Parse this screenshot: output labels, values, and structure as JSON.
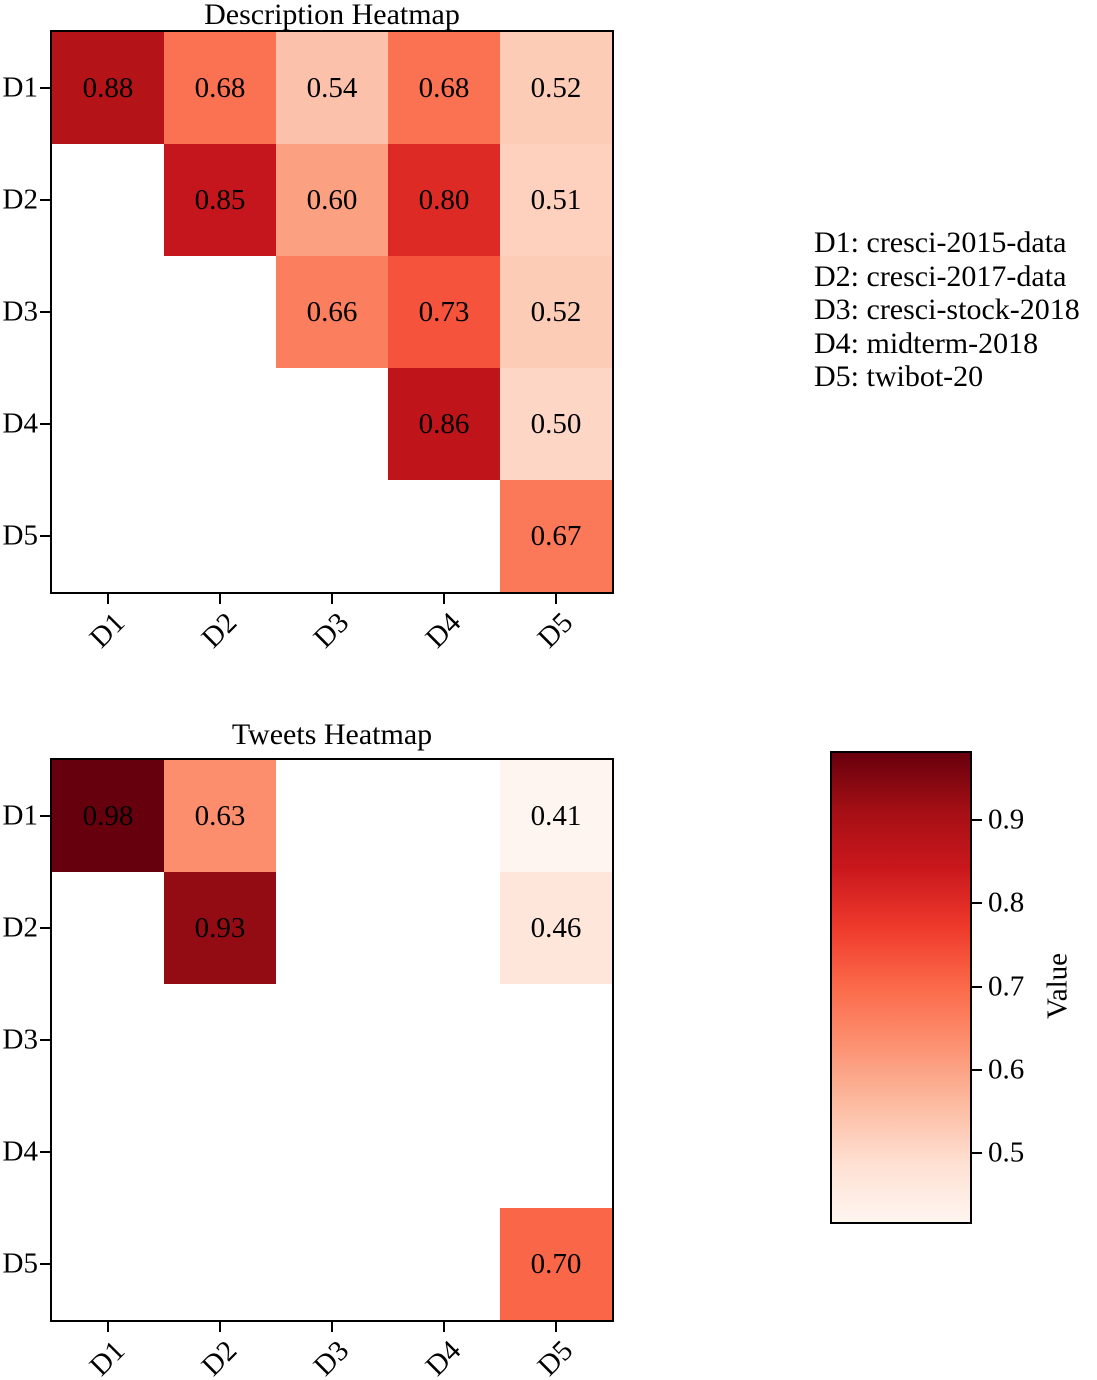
{
  "colormap": {
    "name": "Reds",
    "stops": [
      "#fff5f0",
      "#fee0d2",
      "#fcbba1",
      "#fc9272",
      "#fb6a4a",
      "#ef3b2c",
      "#cb181d",
      "#a50f15",
      "#67000d"
    ],
    "vmin": 0.41,
    "vmax": 0.98
  },
  "legend": {
    "items": [
      "D1: cresci-2015-data",
      "D2: cresci-2017-data",
      "D3: cresci-stock-2018",
      "D4: midterm-2018",
      "D5: twibot-20"
    ]
  },
  "colorbar": {
    "label": "Value",
    "ticks": [
      "0.9",
      "0.8",
      "0.7",
      "0.6",
      "0.5"
    ]
  },
  "chart_data": [
    {
      "type": "heatmap",
      "title": "Description Heatmap",
      "x_labels": [
        "D1",
        "D2",
        "D3",
        "D4",
        "D5"
      ],
      "y_labels": [
        "D1",
        "D2",
        "D3",
        "D4",
        "D5"
      ],
      "values": [
        [
          0.88,
          0.68,
          0.54,
          0.68,
          0.52
        ],
        [
          null,
          0.85,
          0.6,
          0.8,
          0.51
        ],
        [
          null,
          null,
          0.66,
          0.73,
          0.52
        ],
        [
          null,
          null,
          null,
          0.86,
          0.5
        ],
        [
          null,
          null,
          null,
          null,
          0.67
        ]
      ]
    },
    {
      "type": "heatmap",
      "title": "Tweets Heatmap",
      "x_labels": [
        "D1",
        "D2",
        "D3",
        "D4",
        "D5"
      ],
      "y_labels": [
        "D1",
        "D2",
        "D3",
        "D4",
        "D5"
      ],
      "values": [
        [
          0.98,
          0.63,
          null,
          null,
          0.41
        ],
        [
          null,
          0.93,
          null,
          null,
          0.46
        ],
        [
          null,
          null,
          null,
          null,
          null
        ],
        [
          null,
          null,
          null,
          null,
          null
        ],
        [
          null,
          null,
          null,
          null,
          0.7
        ]
      ]
    }
  ]
}
